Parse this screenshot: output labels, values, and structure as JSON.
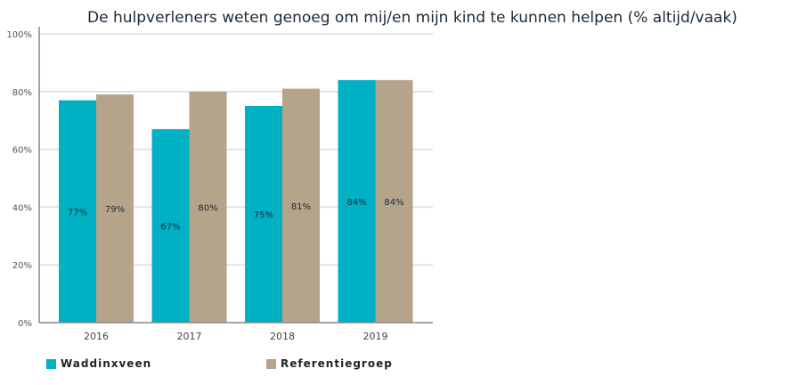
{
  "chart_data": {
    "type": "bar",
    "title": "De hulpverleners weten genoeg om mij/en mijn kind te kunnen helpen (% altijd/vaak)",
    "categories": [
      "2016",
      "2017",
      "2018",
      "2019"
    ],
    "series": [
      {
        "name": "Waddinxveen",
        "values": [
          77,
          67,
          75,
          84
        ],
        "labels": [
          "77%",
          "67%",
          "75%",
          "84%"
        ],
        "color": "#00b0c4"
      },
      {
        "name": "Referentiegroep",
        "values": [
          79,
          80,
          81,
          84
        ],
        "labels": [
          "79%",
          "80%",
          "81%",
          "84%"
        ],
        "color": "#b5a48a"
      }
    ],
    "ylim": [
      0,
      100
    ],
    "yticks": [
      "0%",
      "20%",
      "40%",
      "60%",
      "80%",
      "100%"
    ],
    "xlabel": "",
    "ylabel": "",
    "grid": true,
    "legend": "bottom"
  }
}
